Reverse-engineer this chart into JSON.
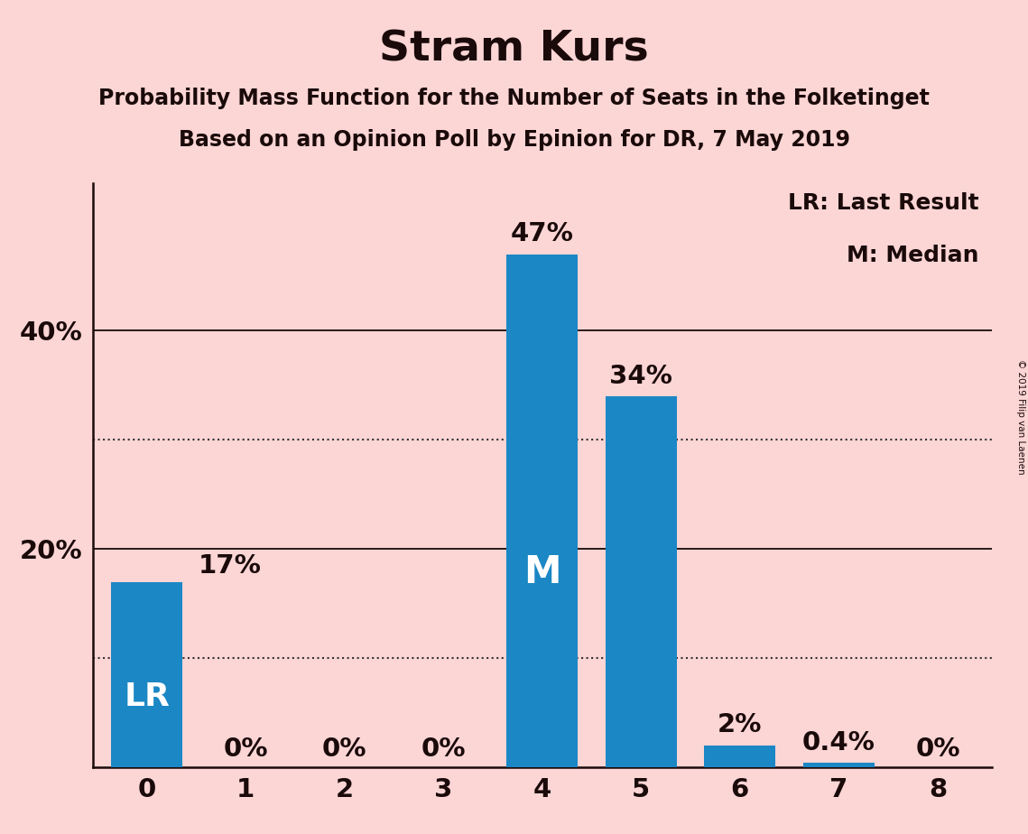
{
  "title": "Stram Kurs",
  "subtitle1": "Probability Mass Function for the Number of Seats in the Folketinget",
  "subtitle2": "Based on an Opinion Poll by Epinion for DR, 7 May 2019",
  "categories": [
    0,
    1,
    2,
    3,
    4,
    5,
    6,
    7,
    8
  ],
  "values": [
    0.17,
    0.0,
    0.0,
    0.0,
    0.47,
    0.34,
    0.02,
    0.004,
    0.0
  ],
  "bar_labels": [
    "17%",
    "0%",
    "0%",
    "0%",
    "47%",
    "34%",
    "2%",
    "0.4%",
    "0%"
  ],
  "bar_color": "#1b87c5",
  "background_color": "#fcd5d5",
  "text_color": "#1a0a0a",
  "yticks": [
    0.0,
    0.2,
    0.4
  ],
  "ytick_labels": [
    "",
    "20%",
    "40%"
  ],
  "ylim": [
    0,
    0.535
  ],
  "solid_lines": [
    0.2,
    0.4
  ],
  "dotted_lines": [
    0.1,
    0.3
  ],
  "lr_bar_index": 0,
  "median_bar_index": 4,
  "legend_text1": "LR: Last Result",
  "legend_text2": "M: Median",
  "copyright_text": "© 2019 Filip van Laenen",
  "title_fontsize": 34,
  "subtitle_fontsize": 17,
  "bar_label_fontsize": 21,
  "axis_tick_fontsize": 21,
  "inner_label_fontsize": 26,
  "legend_fontsize": 18
}
